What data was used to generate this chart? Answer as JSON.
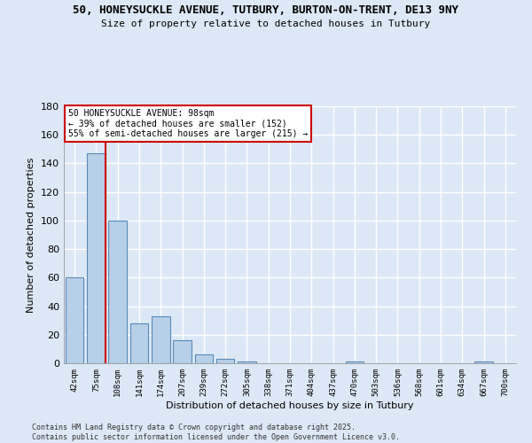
{
  "title_line1": "50, HONEYSUCKLE AVENUE, TUTBURY, BURTON-ON-TRENT, DE13 9NY",
  "title_line2": "Size of property relative to detached houses in Tutbury",
  "xlabel": "Distribution of detached houses by size in Tutbury",
  "ylabel": "Number of detached properties",
  "bar_labels": [
    "42sqm",
    "75sqm",
    "108sqm",
    "141sqm",
    "174sqm",
    "207sqm",
    "239sqm",
    "272sqm",
    "305sqm",
    "338sqm",
    "371sqm",
    "404sqm",
    "437sqm",
    "470sqm",
    "503sqm",
    "536sqm",
    "568sqm",
    "601sqm",
    "634sqm",
    "667sqm",
    "700sqm"
  ],
  "bar_values": [
    60,
    147,
    100,
    28,
    33,
    16,
    6,
    3,
    1,
    0,
    0,
    0,
    0,
    1,
    0,
    0,
    0,
    0,
    0,
    1,
    0
  ],
  "bar_color": "#b8cfe8",
  "bar_edge_color": "#5a8ab8",
  "highlight_bar_index": 1,
  "highlight_line_color": "#cc0000",
  "ylim": [
    0,
    180
  ],
  "yticks": [
    0,
    20,
    40,
    60,
    80,
    100,
    120,
    140,
    160,
    180
  ],
  "annotation_text": "50 HONEYSUCKLE AVENUE: 98sqm\n← 39% of detached houses are smaller (152)\n55% of semi-detached houses are larger (215) →",
  "annotation_box_color": "#ffffff",
  "annotation_box_edge_color": "#cc0000",
  "footer_text": "Contains HM Land Registry data © Crown copyright and database right 2025.\nContains public sector information licensed under the Open Government Licence v3.0.",
  "bg_color": "#dce8f5",
  "grid_color": "#ffffff",
  "title_fontsize": 9,
  "subtitle_fontsize": 8
}
